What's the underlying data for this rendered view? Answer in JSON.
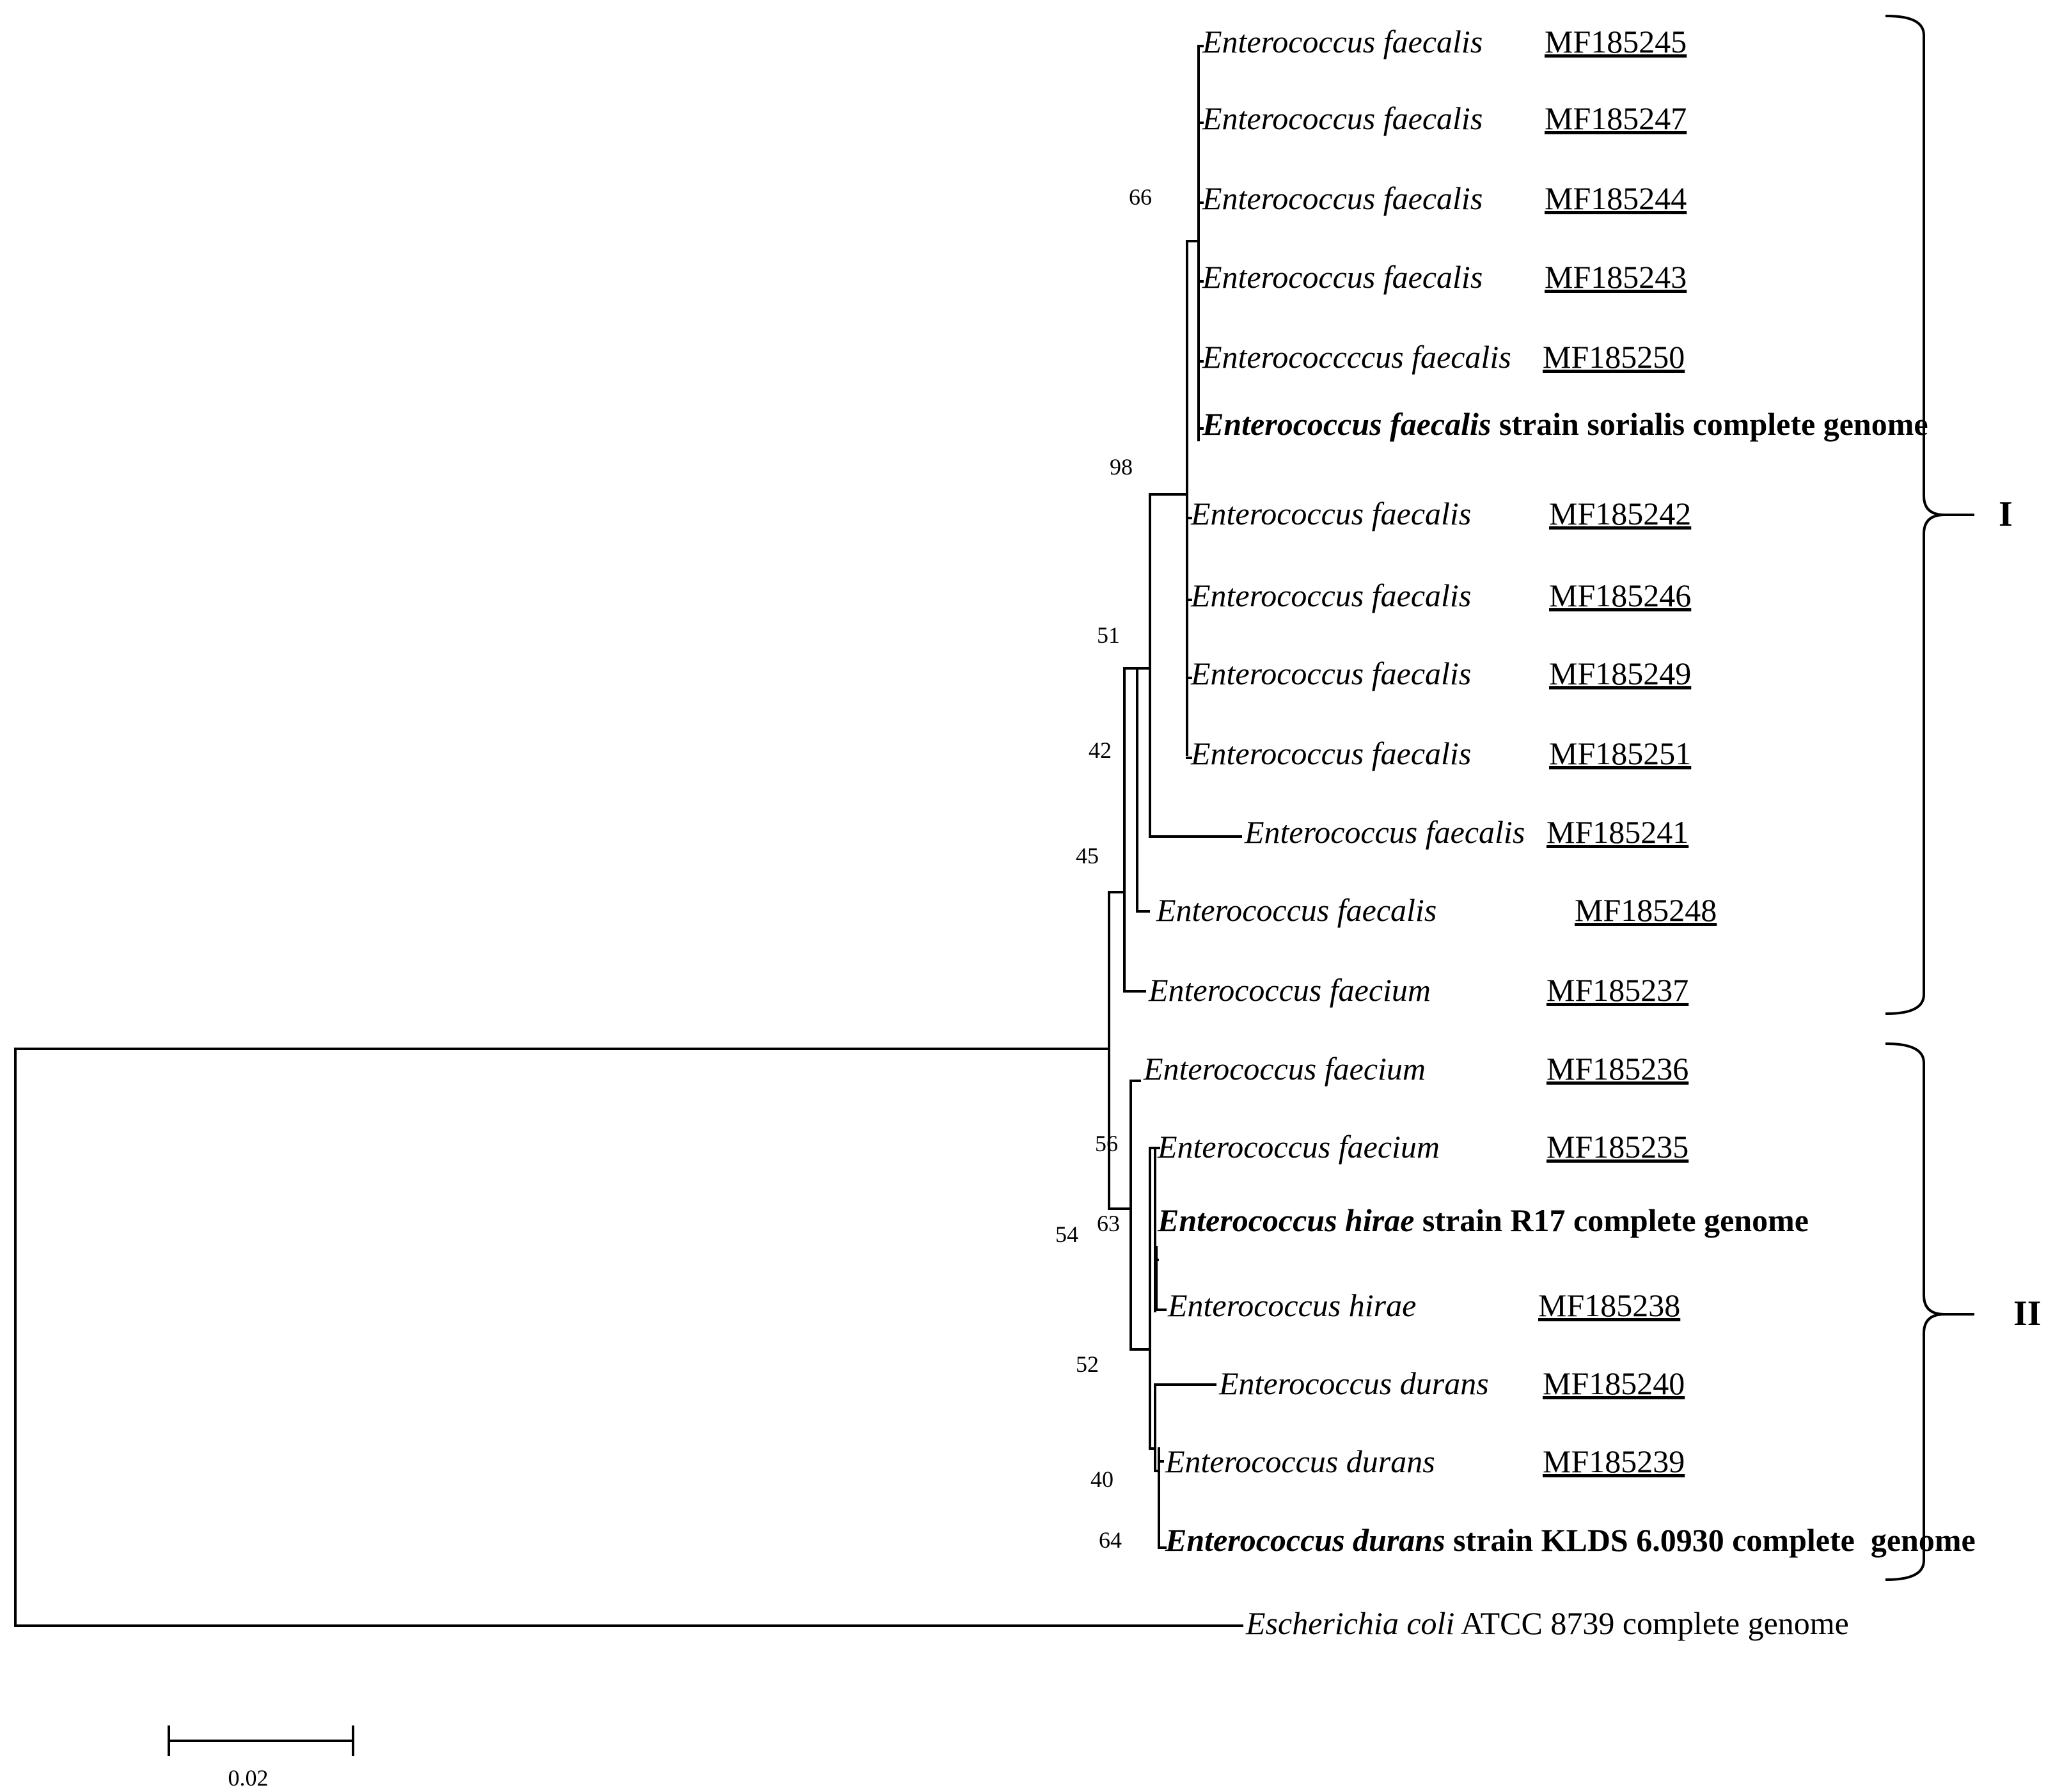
{
  "taxa": [
    {
      "species": "Enterococcus faecalis",
      "suffix": "",
      "accession": "MF185245",
      "bold": false
    },
    {
      "species": "Enterococcus faecalis",
      "suffix": "",
      "accession": "MF185247",
      "bold": false
    },
    {
      "species": "Enterococcus faecalis",
      "suffix": "",
      "accession": "MF185244",
      "bold": false
    },
    {
      "species": "Enterococcus faecalis",
      "suffix": "",
      "accession": "MF185243",
      "bold": false
    },
    {
      "species": "Enterococcccus faecalis",
      "suffix": "",
      "accession": "MF185250",
      "bold": false
    },
    {
      "species": "Enterococcus faecalis",
      "suffix": " strain sorialis complete genome",
      "accession": "",
      "bold": true
    },
    {
      "species": "Enterococcus faecalis",
      "suffix": "",
      "accession": "MF185242",
      "bold": false
    },
    {
      "species": "Enterococcus faecalis",
      "suffix": "",
      "accession": "MF185246",
      "bold": false
    },
    {
      "species": "Enterococcus faecalis",
      "suffix": "",
      "accession": "MF185249",
      "bold": false
    },
    {
      "species": "Enterococcus faecalis",
      "suffix": "",
      "accession": "MF185251",
      "bold": false
    },
    {
      "species": "Enterococcus faecalis",
      "suffix": "",
      "accession": "MF185241",
      "bold": false
    },
    {
      "species": "Enterococcus faecalis",
      "suffix": "",
      "accession": "MF185248",
      "bold": false
    },
    {
      "species": "Enterococcus faecium",
      "suffix": "",
      "accession": "MF185237",
      "bold": false
    },
    {
      "species": "Enterococcus faecium",
      "suffix": "",
      "accession": "MF185236",
      "bold": false
    },
    {
      "species": "Enterococcus faecium",
      "suffix": "",
      "accession": "MF185235",
      "bold": false
    },
    {
      "species": "Enterococcus hirae",
      "suffix": " strain R17 complete genome",
      "accession": "",
      "bold": true
    },
    {
      "species": "Enterococcus hirae",
      "suffix": "",
      "accession": "MF185238",
      "bold": false
    },
    {
      "species": "Enterococcus durans",
      "suffix": "",
      "accession": "MF185240",
      "bold": false
    },
    {
      "species": "Enterococcus durans",
      "suffix": "",
      "accession": "MF185239",
      "bold": false
    },
    {
      "species": "Enterococcus durans",
      "suffix": " strain KLDS 6.0930 complete  genome",
      "accession": "",
      "bold": true
    },
    {
      "species": "Escherichia coli",
      "suffix": " ATCC 8739 complete genome",
      "accession": "",
      "bold": false
    }
  ],
  "bootstrap": [
    "66",
    "98",
    "51",
    "42",
    "45",
    "56",
    "63",
    "54",
    "52",
    "40",
    "64"
  ],
  "clades": [
    "I",
    "II"
  ],
  "scale_bar": {
    "label": "0.02",
    "value": 0.02
  }
}
